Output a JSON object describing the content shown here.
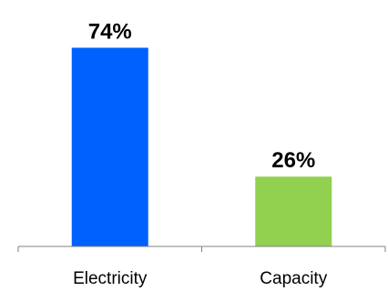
{
  "chart_data": {
    "type": "bar",
    "categories": [
      "Electricity",
      "Capacity"
    ],
    "values": [
      74,
      26
    ],
    "value_labels": [
      "74%",
      "26%"
    ],
    "colors": [
      "#0061ff",
      "#92d050"
    ],
    "axis_color": "#808080",
    "ylim": [
      0,
      85
    ],
    "title": "",
    "xlabel": "",
    "ylabel": "",
    "grid": false,
    "legend": "none"
  }
}
